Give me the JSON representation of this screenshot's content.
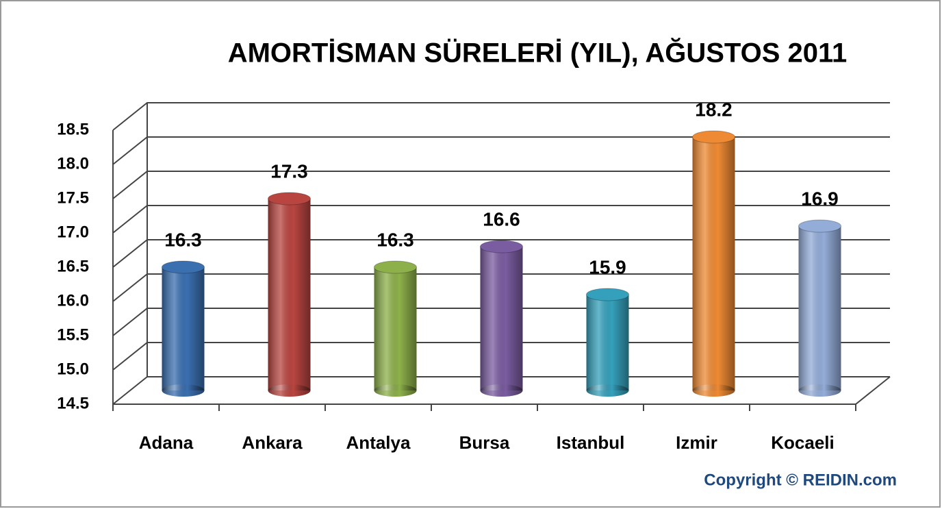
{
  "chart_data": {
    "type": "bar3d",
    "title": "AMORTİSMAN SÜRELERİ (YIL), AĞUSTOS 2011",
    "categories": [
      "Adana",
      "Ankara",
      "Antalya",
      "Bursa",
      "Istanbul",
      "Izmir",
      "Kocaeli"
    ],
    "values": [
      16.3,
      17.3,
      16.3,
      16.6,
      15.9,
      18.2,
      16.9
    ],
    "colors": [
      "#3a6fb0",
      "#b84540",
      "#8db04a",
      "#7a5ca0",
      "#35a0bb",
      "#ee8a33",
      "#93acd8"
    ],
    "ylim": [
      14.5,
      18.5
    ],
    "yticks": [
      14.5,
      {
        "value": 15,
        "label": "15.0"
      },
      15.5,
      {
        "value": 16,
        "label": "16.0"
      },
      16.5,
      {
        "value": 17,
        "label": "17.0"
      },
      17.5,
      {
        "value": 18,
        "label": "18.0"
      },
      18.5
    ],
    "grid": true,
    "copyright": "Copyright © REIDIN.com"
  }
}
